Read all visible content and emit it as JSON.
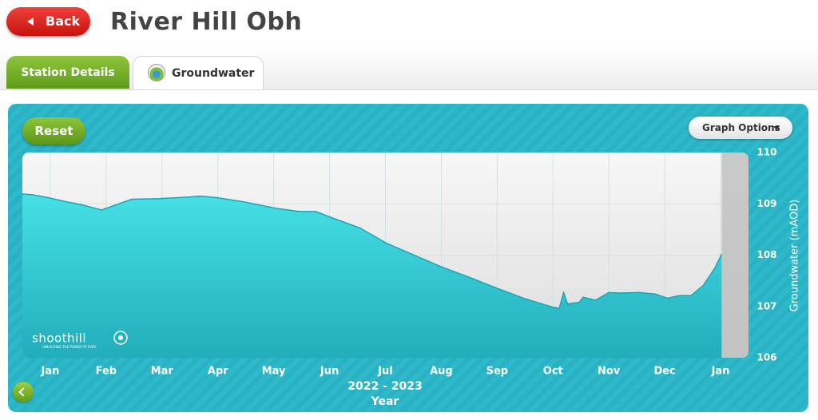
{
  "header": {
    "back": "Back",
    "title": "River Hill Obh"
  },
  "tabs": [
    "Station Details",
    "Groundwater"
  ],
  "buttons": {
    "reset": "Reset",
    "graph_options": "Graph Options"
  },
  "chart_data": {
    "type": "area",
    "ylabel": "Groundwater (mAOD)",
    "period": "2022 - 2023",
    "xlabel": "Year",
    "watermark": "shoothill",
    "watermark_tagline": "UNLOCKING THE POWER OF DATA",
    "x": [
      0,
      0.17,
      0.46,
      0.74,
      1.03,
      1.42,
      1.6,
      1.96,
      2.45,
      2.96,
      3.18,
      3.48,
      3.96,
      4.55,
      4.96,
      5.25,
      5.61,
      6.04,
      6.52,
      6.97,
      7.48,
      7.97,
      8.51,
      8.97,
      9.48,
      9.61,
      9.69,
      9.76,
      9.97,
      10.04,
      10.26,
      10.5,
      10.69,
      11.04,
      11.33,
      11.55,
      11.76,
      11.97,
      12.19,
      12.4,
      12.52
    ],
    "values": [
      109.19,
      109.18,
      109.12,
      109.05,
      108.99,
      108.88,
      108.95,
      109.09,
      109.1,
      109.13,
      109.15,
      109.12,
      109.04,
      108.91,
      108.85,
      108.85,
      108.7,
      108.53,
      108.23,
      108.02,
      107.78,
      107.58,
      107.35,
      107.16,
      106.99,
      106.96,
      107.27,
      107.05,
      107.08,
      107.18,
      107.12,
      107.27,
      107.26,
      107.27,
      107.24,
      107.16,
      107.21,
      107.21,
      107.41,
      107.75,
      108.02
    ],
    "color": "#3ad8df",
    "xlim": [
      0,
      13
    ],
    "xticks": [
      {
        "value": 0.5,
        "label": "Jan"
      },
      {
        "value": 1.5,
        "label": "Feb"
      },
      {
        "value": 2.5,
        "label": "Mar"
      },
      {
        "value": 3.5,
        "label": "Apr"
      },
      {
        "value": 4.5,
        "label": "May"
      },
      {
        "value": 5.5,
        "label": "Jun"
      },
      {
        "value": 6.5,
        "label": "Jul"
      },
      {
        "value": 7.5,
        "label": "Aug"
      },
      {
        "value": 8.5,
        "label": "Sep"
      },
      {
        "value": 9.5,
        "label": "Oct"
      },
      {
        "value": 10.5,
        "label": "Nov"
      },
      {
        "value": 11.5,
        "label": "Dec"
      },
      {
        "value": 12.5,
        "label": "Jan"
      }
    ],
    "ylim": [
      106,
      110
    ],
    "yticks": [
      106,
      107,
      108,
      109,
      110
    ],
    "grid": true
  }
}
